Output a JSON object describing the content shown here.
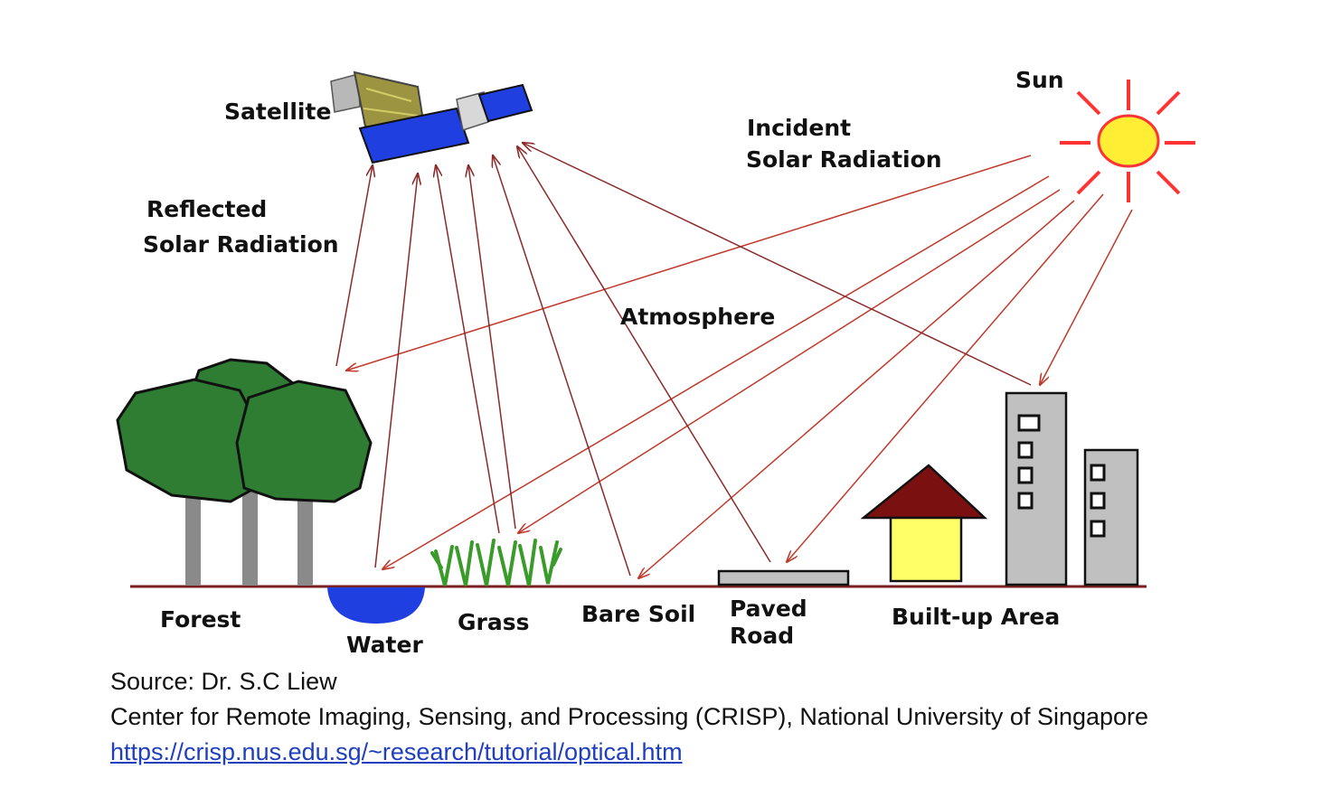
{
  "labels": {
    "satellite": "Satellite",
    "sun": "Sun",
    "incident_1": "Incident",
    "incident_2": "Solar Radiation",
    "reflected_1": "Reflected",
    "reflected_2": "Solar Radiation",
    "atmosphere": "Atmosphere",
    "forest": "Forest",
    "water": "Water",
    "grass": "Grass",
    "bare_soil": "Bare Soil",
    "paved_1": "Paved",
    "paved_2": "Road",
    "built_up": "Built-up Area"
  },
  "credits": {
    "source": "Source: Dr. S.C Liew",
    "center": "Center for Remote Imaging, Sensing, and Processing (CRISP), National University of Singapore",
    "url": "https://crisp.nus.edu.sg/~research/tutorial/optical.htm"
  },
  "colors": {
    "arrow": "#c0392b",
    "reflected_arrow": "#8b2a2a",
    "tree": "#2e7d32",
    "trunk": "#8a8a8a",
    "water": "#1f3fe0",
    "grass": "#3a9a2a",
    "ground": "#7a1f1f",
    "roof": "#7a1010",
    "house": "#ffff66",
    "building": "#c0c0c0",
    "sun": "#ffee33",
    "sun_ray": "#ff3333",
    "panel": "#1f3fe0",
    "link": "#1f3fbf"
  }
}
